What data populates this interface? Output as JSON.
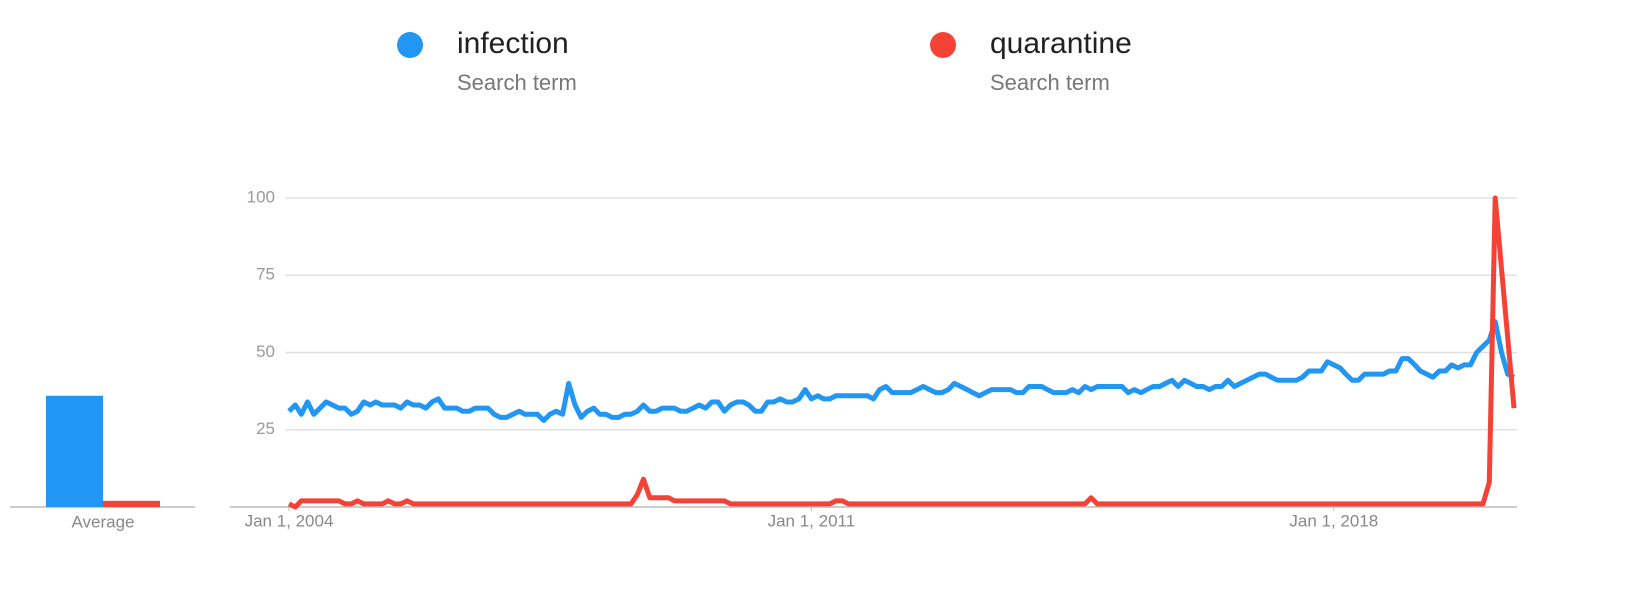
{
  "chart_data": {
    "type": "line",
    "x": [
      "2004-01-01",
      "2004-02-01",
      "2004-03-01",
      "2004-04-01",
      "2004-05-01",
      "2004-06-01",
      "2004-07-01",
      "2004-08-01",
      "2004-09-01",
      "2004-10-01",
      "2004-11-01",
      "2004-12-01",
      "2005-01-01",
      "2005-02-01",
      "2005-03-01",
      "2005-04-01",
      "2005-05-01",
      "2005-06-01",
      "2005-07-01",
      "2005-08-01",
      "2005-09-01",
      "2005-10-01",
      "2005-11-01",
      "2005-12-01",
      "2006-01-01",
      "2006-02-01",
      "2006-03-01",
      "2006-04-01",
      "2006-05-01",
      "2006-06-01",
      "2006-07-01",
      "2006-08-01",
      "2006-09-01",
      "2006-10-01",
      "2006-11-01",
      "2006-12-01",
      "2007-01-01",
      "2007-02-01",
      "2007-03-01",
      "2007-04-01",
      "2007-05-01",
      "2007-06-01",
      "2007-07-01",
      "2007-08-01",
      "2007-09-01",
      "2007-10-01",
      "2007-11-01",
      "2007-12-01",
      "2008-01-01",
      "2008-02-01",
      "2008-03-01",
      "2008-04-01",
      "2008-05-01",
      "2008-06-01",
      "2008-07-01",
      "2008-08-01",
      "2008-09-01",
      "2008-10-01",
      "2008-11-01",
      "2008-12-01",
      "2009-01-01",
      "2009-02-01",
      "2009-03-01",
      "2009-04-01",
      "2009-05-01",
      "2009-06-01",
      "2009-07-01",
      "2009-08-01",
      "2009-09-01",
      "2009-10-01",
      "2009-11-01",
      "2009-12-01",
      "2010-01-01",
      "2010-02-01",
      "2010-03-01",
      "2010-04-01",
      "2010-05-01",
      "2010-06-01",
      "2010-07-01",
      "2010-08-01",
      "2010-09-01",
      "2010-10-01",
      "2010-11-01",
      "2010-12-01",
      "2011-01-01",
      "2011-02-01",
      "2011-03-01",
      "2011-04-01",
      "2011-05-01",
      "2011-06-01",
      "2011-07-01",
      "2011-08-01",
      "2011-09-01",
      "2011-10-01",
      "2011-11-01",
      "2011-12-01",
      "2012-01-01",
      "2012-02-01",
      "2012-03-01",
      "2012-04-01",
      "2012-05-01",
      "2012-06-01",
      "2012-07-01",
      "2012-08-01",
      "2012-09-01",
      "2012-10-01",
      "2012-11-01",
      "2012-12-01",
      "2013-01-01",
      "2013-02-01",
      "2013-03-01",
      "2013-04-01",
      "2013-05-01",
      "2013-06-01",
      "2013-07-01",
      "2013-08-01",
      "2013-09-01",
      "2013-10-01",
      "2013-11-01",
      "2013-12-01",
      "2014-01-01",
      "2014-02-01",
      "2014-03-01",
      "2014-04-01",
      "2014-05-01",
      "2014-06-01",
      "2014-07-01",
      "2014-08-01",
      "2014-09-01",
      "2014-10-01",
      "2014-11-01",
      "2014-12-01",
      "2015-01-01",
      "2015-02-01",
      "2015-03-01",
      "2015-04-01",
      "2015-05-01",
      "2015-06-01",
      "2015-07-01",
      "2015-08-01",
      "2015-09-01",
      "2015-10-01",
      "2015-11-01",
      "2015-12-01",
      "2016-01-01",
      "2016-02-01",
      "2016-03-01",
      "2016-04-01",
      "2016-05-01",
      "2016-06-01",
      "2016-07-01",
      "2016-08-01",
      "2016-09-01",
      "2016-10-01",
      "2016-11-01",
      "2016-12-01",
      "2017-01-01",
      "2017-02-01",
      "2017-03-01",
      "2017-04-01",
      "2017-05-01",
      "2017-06-01",
      "2017-07-01",
      "2017-08-01",
      "2017-09-01",
      "2017-10-01",
      "2017-11-01",
      "2017-12-01",
      "2018-01-01",
      "2018-02-01",
      "2018-03-01",
      "2018-04-01",
      "2018-05-01",
      "2018-06-01",
      "2018-07-01",
      "2018-08-01",
      "2018-09-01",
      "2018-10-01",
      "2018-11-01",
      "2018-12-01",
      "2019-01-01",
      "2019-02-01",
      "2019-03-01",
      "2019-04-01",
      "2019-05-01",
      "2019-06-01",
      "2019-07-01",
      "2019-08-01",
      "2019-09-01",
      "2019-10-01",
      "2019-11-01",
      "2019-12-01",
      "2020-01-01",
      "2020-02-01",
      "2020-03-01",
      "2020-04-01",
      "2020-05-01",
      "2020-06-01"
    ],
    "xlim": [
      "2004-01-01",
      "2020-06-01"
    ],
    "xticks": [
      {
        "value": "2004-01-01",
        "label": "Jan 1, 2004"
      },
      {
        "value": "2011-01-01",
        "label": "Jan 1, 2011"
      },
      {
        "value": "2018-01-01",
        "label": "Jan 1, 2018"
      }
    ],
    "ylim": [
      0,
      100
    ],
    "yticks": [
      25,
      50,
      75,
      100
    ],
    "grid": true,
    "average_label": "Average",
    "series": [
      {
        "name": "infection",
        "kind": "Search term",
        "color": "#2196f3",
        "average": 36,
        "values": [
          31,
          33,
          30,
          34,
          30,
          32,
          34,
          33,
          32,
          32,
          30,
          31,
          34,
          33,
          34,
          33,
          33,
          33,
          32,
          34,
          33,
          33,
          32,
          34,
          35,
          32,
          32,
          32,
          31,
          31,
          32,
          32,
          32,
          30,
          29,
          29,
          30,
          31,
          30,
          30,
          30,
          28,
          30,
          31,
          30,
          40,
          33,
          29,
          31,
          32,
          30,
          30,
          29,
          29,
          30,
          30,
          31,
          33,
          31,
          31,
          32,
          32,
          32,
          31,
          31,
          32,
          33,
          32,
          34,
          34,
          31,
          33,
          34,
          34,
          33,
          31,
          31,
          34,
          34,
          35,
          34,
          34,
          35,
          38,
          35,
          36,
          35,
          35,
          36,
          36,
          36,
          36,
          36,
          36,
          35,
          38,
          39,
          37,
          37,
          37,
          37,
          38,
          39,
          38,
          37,
          37,
          38,
          40,
          39,
          38,
          37,
          36,
          37,
          38,
          38,
          38,
          38,
          37,
          37,
          39,
          39,
          39,
          38,
          37,
          37,
          37,
          38,
          37,
          39,
          38,
          39,
          39,
          39,
          39,
          39,
          37,
          38,
          37,
          38,
          39,
          39,
          40,
          41,
          39,
          41,
          40,
          39,
          39,
          38,
          39,
          39,
          41,
          39,
          40,
          41,
          42,
          43,
          43,
          42,
          41,
          41,
          41,
          41,
          42,
          44,
          44,
          44,
          47,
          46,
          45,
          43,
          41,
          41,
          43,
          43,
          43,
          43,
          44,
          44,
          48,
          48,
          46,
          44,
          43,
          42,
          44,
          44,
          46,
          45,
          46,
          46,
          50,
          52,
          54,
          60,
          50,
          43,
          42
        ]
      },
      {
        "name": "quarantine",
        "kind": "Search term",
        "color": "#f44336",
        "average": 2,
        "values": [
          1,
          0,
          2,
          2,
          2,
          2,
          2,
          2,
          2,
          1,
          1,
          2,
          1,
          1,
          1,
          1,
          2,
          1,
          1,
          2,
          1,
          1,
          1,
          1,
          1,
          1,
          1,
          1,
          1,
          1,
          1,
          1,
          1,
          1,
          1,
          1,
          1,
          1,
          1,
          1,
          1,
          1,
          1,
          1,
          1,
          1,
          1,
          1,
          1,
          1,
          1,
          1,
          1,
          1,
          1,
          1,
          4,
          9,
          3,
          3,
          3,
          3,
          2,
          2,
          2,
          2,
          2,
          2,
          2,
          2,
          2,
          1,
          1,
          1,
          1,
          1,
          1,
          1,
          1,
          1,
          1,
          1,
          1,
          1,
          1,
          1,
          1,
          1,
          2,
          2,
          1,
          1,
          1,
          1,
          1,
          1,
          1,
          1,
          1,
          1,
          1,
          1,
          1,
          1,
          1,
          1,
          1,
          1,
          1,
          1,
          1,
          1,
          1,
          1,
          1,
          1,
          1,
          1,
          1,
          1,
          1,
          1,
          1,
          1,
          1,
          1,
          1,
          1,
          1,
          3,
          1,
          1,
          1,
          1,
          1,
          1,
          1,
          1,
          1,
          1,
          1,
          1,
          1,
          1,
          1,
          1,
          1,
          1,
          1,
          1,
          1,
          1,
          1,
          1,
          1,
          1,
          1,
          1,
          1,
          1,
          1,
          1,
          1,
          1,
          1,
          1,
          1,
          1,
          1,
          1,
          1,
          1,
          1,
          1,
          1,
          1,
          1,
          1,
          1,
          1,
          1,
          1,
          1,
          1,
          1,
          1,
          1,
          1,
          1,
          1,
          1,
          1,
          1,
          8,
          100,
          77,
          55,
          32
        ]
      }
    ]
  }
}
